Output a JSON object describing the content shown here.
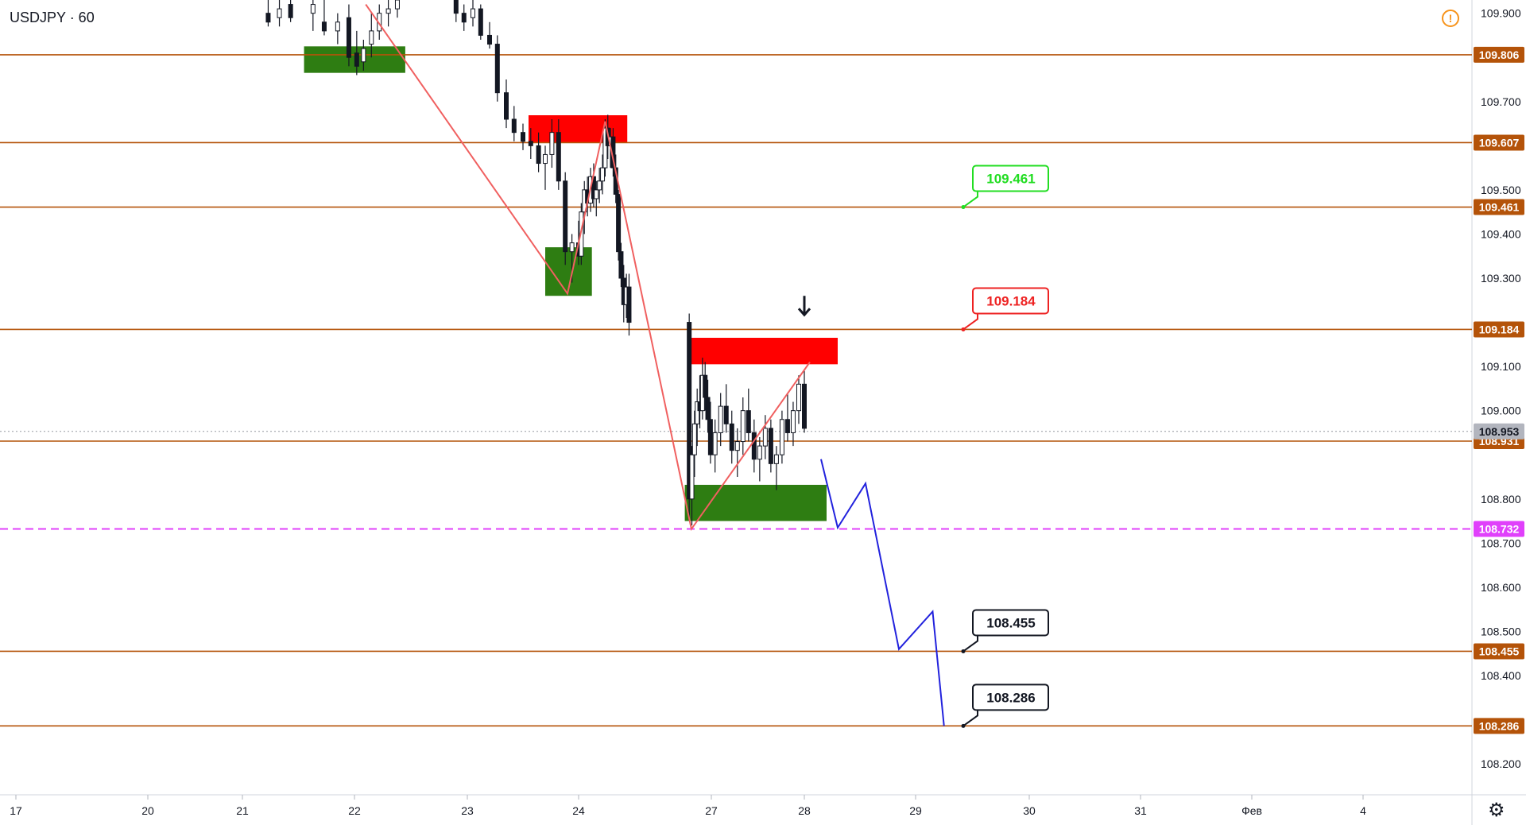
{
  "symbol_title": "USDJPY · 60",
  "icons": {
    "alert": "alert-icon",
    "settings": "gear-icon",
    "arrow": "down-arrow-icon"
  },
  "colors": {
    "up_candle": "#ffffff",
    "down_candle": "#131722",
    "level_line": "#b45309",
    "level_tag_bg": "#b45309",
    "current_tag_bg": "#b2b5be",
    "magenta": "#e040fb",
    "supply_zone": "#ff0000",
    "demand_zone": "#2e7d12",
    "zigzag": "#f06060",
    "projection": "#2222dd",
    "label_green": "#22dd22",
    "label_red": "#ee2222",
    "label_black": "#131722"
  },
  "chart_data": {
    "type": "candlestick",
    "symbol": "USDJPY",
    "timeframe": "60",
    "y_axis": {
      "ticks": [
        "109.900",
        "109.700",
        "109.500",
        "109.400",
        "109.300",
        "109.100",
        "109.000",
        "108.800",
        "108.700",
        "108.600",
        "108.500",
        "108.400",
        "108.200"
      ],
      "range": [
        108.13,
        109.93
      ]
    },
    "x_axis": {
      "ticks": [
        "17",
        "20",
        "21",
        "22",
        "23",
        "24",
        "27",
        "28",
        "29",
        "30",
        "31",
        "Фев",
        "4"
      ]
    },
    "grid": false,
    "current_price": "108.953",
    "horizontal_levels": [
      {
        "value": 109.806,
        "label": "109.806",
        "style": "solid",
        "color": "level"
      },
      {
        "value": 109.607,
        "label": "109.607",
        "style": "solid",
        "color": "level"
      },
      {
        "value": 109.461,
        "label": "109.461",
        "style": "solid",
        "color": "level"
      },
      {
        "value": 109.184,
        "label": "109.184",
        "style": "solid",
        "color": "level"
      },
      {
        "value": 108.931,
        "label": "108.931",
        "style": "solid",
        "color": "level"
      },
      {
        "value": 108.732,
        "label": "108.732",
        "style": "dashed",
        "color": "magenta"
      },
      {
        "value": 108.455,
        "label": "108.455",
        "style": "solid",
        "color": "level"
      },
      {
        "value": 108.286,
        "label": "108.286",
        "style": "solid",
        "color": "level"
      }
    ],
    "price_callouts": [
      {
        "value": 109.461,
        "label": "109.461",
        "color": "green"
      },
      {
        "value": 109.184,
        "label": "109.184",
        "color": "red"
      },
      {
        "value": 108.455,
        "label": "108.455",
        "color": "black"
      },
      {
        "value": 108.286,
        "label": "108.286",
        "color": "black"
      }
    ],
    "zones": [
      {
        "kind": "demand",
        "day_from": 21.55,
        "day_to": 22.45,
        "top": 109.825,
        "bottom": 109.765
      },
      {
        "kind": "supply",
        "day_from": 23.55,
        "day_to": 25.1,
        "top": 109.669,
        "bottom": 109.607
      },
      {
        "kind": "demand",
        "day_from": 23.7,
        "day_to": 24.3,
        "top": 109.37,
        "bottom": 109.26
      },
      {
        "kind": "supply",
        "day_from": 26.55,
        "day_to": 28.3,
        "top": 109.165,
        "bottom": 109.105
      },
      {
        "kind": "demand",
        "day_from": 26.4,
        "day_to": 28.2,
        "top": 108.832,
        "bottom": 108.75
      }
    ],
    "zigzag": [
      {
        "day": 22.1,
        "price": 109.92
      },
      {
        "day": 23.9,
        "price": 109.265
      },
      {
        "day": 24.6,
        "price": 109.655
      },
      {
        "day": 26.55,
        "price": 108.732
      },
      {
        "day": 28.05,
        "price": 109.11
      }
    ],
    "projection": [
      {
        "day": 28.15,
        "price": 108.89
      },
      {
        "day": 28.3,
        "price": 108.735
      },
      {
        "day": 28.55,
        "price": 108.835
      },
      {
        "day": 28.85,
        "price": 108.46
      },
      {
        "day": 29.15,
        "price": 108.545
      },
      {
        "day": 29.25,
        "price": 108.286
      }
    ],
    "arrow": {
      "day": 28.0,
      "price": 109.26
    },
    "candles": [
      [
        21.23,
        109.9,
        109.93,
        109.87,
        109.88
      ],
      [
        21.33,
        109.89,
        109.93,
        109.87,
        109.91
      ],
      [
        21.43,
        109.92,
        109.94,
        109.88,
        109.89
      ],
      [
        21.63,
        109.9,
        109.93,
        109.86,
        109.92
      ],
      [
        21.73,
        109.88,
        109.94,
        109.85,
        109.86
      ],
      [
        21.85,
        109.86,
        109.9,
        109.83,
        109.88
      ],
      [
        21.95,
        109.89,
        109.92,
        109.78,
        109.8
      ],
      [
        22.02,
        109.81,
        109.86,
        109.76,
        109.78
      ],
      [
        22.08,
        109.79,
        109.84,
        109.77,
        109.82
      ],
      [
        22.15,
        109.83,
        109.9,
        109.8,
        109.86
      ],
      [
        22.22,
        109.86,
        109.92,
        109.84,
        109.9
      ],
      [
        22.3,
        109.9,
        109.94,
        109.87,
        109.91
      ],
      [
        22.38,
        109.91,
        109.95,
        109.89,
        109.93
      ],
      [
        22.9,
        109.93,
        109.95,
        109.88,
        109.9
      ],
      [
        22.97,
        109.9,
        109.92,
        109.86,
        109.88
      ],
      [
        23.05,
        109.89,
        109.93,
        109.87,
        109.91
      ],
      [
        23.12,
        109.91,
        109.92,
        109.84,
        109.85
      ],
      [
        23.2,
        109.85,
        109.88,
        109.82,
        109.83
      ],
      [
        23.27,
        109.83,
        109.85,
        109.7,
        109.72
      ],
      [
        23.35,
        109.72,
        109.75,
        109.64,
        109.66
      ],
      [
        23.42,
        109.66,
        109.69,
        109.61,
        109.63
      ],
      [
        23.5,
        109.63,
        109.65,
        109.59,
        109.61
      ],
      [
        23.57,
        109.61,
        109.64,
        109.57,
        109.6
      ],
      [
        23.64,
        109.6,
        109.63,
        109.54,
        109.56
      ],
      [
        23.7,
        109.56,
        109.6,
        109.5,
        109.58
      ],
      [
        23.76,
        109.58,
        109.66,
        109.55,
        109.63
      ],
      [
        23.82,
        109.63,
        109.66,
        109.5,
        109.52
      ],
      [
        23.88,
        109.52,
        109.54,
        109.33,
        109.36
      ],
      [
        23.94,
        109.36,
        109.4,
        109.29,
        109.38
      ],
      [
        24.0,
        109.38,
        109.43,
        109.33,
        109.35
      ],
      [
        24.06,
        109.35,
        109.47,
        109.33,
        109.45
      ],
      [
        24.13,
        109.45,
        109.52,
        109.4,
        109.5
      ],
      [
        24.2,
        109.5,
        109.53,
        109.44,
        109.47
      ],
      [
        24.27,
        109.47,
        109.55,
        109.45,
        109.53
      ],
      [
        24.34,
        109.53,
        109.56,
        109.46,
        109.48
      ],
      [
        24.4,
        109.48,
        109.52,
        109.44,
        109.5
      ],
      [
        24.47,
        109.5,
        109.55,
        109.47,
        109.52
      ],
      [
        24.54,
        109.52,
        109.58,
        109.49,
        109.55
      ],
      [
        24.6,
        109.55,
        109.66,
        109.53,
        109.64
      ],
      [
        24.66,
        109.64,
        109.67,
        109.57,
        109.6
      ],
      [
        24.72,
        109.6,
        109.64,
        109.55,
        109.62
      ],
      [
        24.78,
        109.62,
        109.64,
        109.53,
        109.55
      ],
      [
        24.84,
        109.55,
        109.58,
        109.47,
        109.49
      ],
      [
        24.9,
        109.49,
        109.5,
        109.34,
        109.36
      ],
      [
        24.96,
        109.36,
        109.38,
        109.28,
        109.3
      ],
      [
        25.02,
        109.3,
        109.33,
        109.2,
        109.24
      ],
      [
        25.08,
        109.24,
        109.31,
        109.21,
        109.28
      ],
      [
        25.14,
        109.28,
        109.31,
        109.17,
        109.2
      ],
      [
        26.5,
        109.2,
        109.22,
        108.75,
        108.8
      ],
      [
        26.56,
        108.8,
        108.92,
        108.74,
        108.9
      ],
      [
        26.62,
        108.9,
        109.0,
        108.85,
        108.97
      ],
      [
        26.68,
        108.97,
        109.05,
        108.92,
        109.02
      ],
      [
        26.74,
        109.02,
        109.08,
        108.96,
        109.0
      ],
      [
        26.8,
        109.0,
        109.12,
        108.98,
        109.08
      ],
      [
        26.86,
        109.08,
        109.11,
        109.0,
        109.03
      ],
      [
        26.92,
        109.03,
        109.07,
        108.95,
        108.98
      ],
      [
        26.98,
        108.98,
        109.02,
        108.88,
        108.9
      ],
      [
        27.04,
        108.9,
        108.98,
        108.86,
        108.95
      ],
      [
        27.1,
        108.95,
        109.04,
        108.92,
        109.01
      ],
      [
        27.16,
        109.01,
        109.06,
        108.95,
        108.97
      ],
      [
        27.22,
        108.97,
        109.0,
        108.88,
        108.91
      ],
      [
        27.28,
        108.91,
        108.96,
        108.85,
        108.93
      ],
      [
        27.34,
        108.93,
        109.03,
        108.9,
        109.0
      ],
      [
        27.4,
        109.0,
        109.05,
        108.93,
        108.95
      ],
      [
        27.46,
        108.95,
        108.98,
        108.86,
        108.89
      ],
      [
        27.52,
        108.89,
        108.94,
        108.84,
        108.92
      ],
      [
        27.58,
        108.92,
        108.99,
        108.89,
        108.96
      ],
      [
        27.64,
        108.96,
        108.98,
        108.86,
        108.88
      ],
      [
        27.7,
        108.88,
        108.92,
        108.82,
        108.9
      ],
      [
        27.76,
        108.9,
        109.0,
        108.88,
        108.98
      ],
      [
        27.82,
        108.98,
        109.04,
        108.93,
        108.95
      ],
      [
        27.88,
        108.95,
        109.02,
        108.92,
        109.0
      ],
      [
        27.94,
        109.0,
        109.08,
        108.97,
        109.06
      ],
      [
        28.0,
        109.06,
        109.09,
        108.95,
        108.96
      ]
    ]
  }
}
